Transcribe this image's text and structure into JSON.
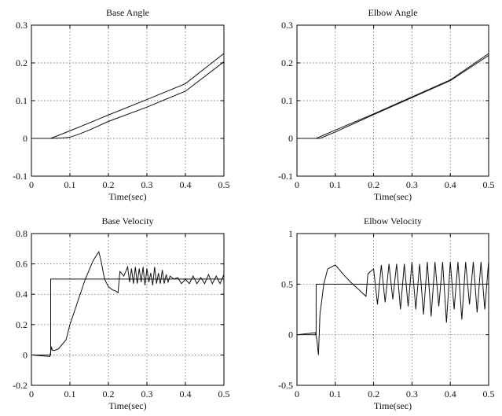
{
  "chart_data": [
    {
      "type": "line",
      "title": "Base Angle",
      "xlabel": "Time(sec)",
      "ylabel": "",
      "xlim": [
        0,
        0.5
      ],
      "ylim": [
        -0.1,
        0.3
      ],
      "xticks": [
        "0",
        "0.1",
        "0.2",
        "0.3",
        "0.4",
        "0.5"
      ],
      "yticks": [
        "-0.1",
        "0",
        "0.1",
        "0.2",
        "0.3"
      ],
      "grid": true,
      "series": [
        {
          "x": [
            0,
            0.05,
            0.1,
            0.2,
            0.3,
            0.4,
            0.5
          ],
          "y": [
            0,
            0,
            0.02,
            0.062,
            0.103,
            0.145,
            0.225
          ]
        },
        {
          "x": [
            0,
            0.05,
            0.08,
            0.1,
            0.12,
            0.15,
            0.2,
            0.3,
            0.4,
            0.5
          ],
          "y": [
            0,
            0,
            0.001,
            0.003,
            0.01,
            0.022,
            0.045,
            0.083,
            0.125,
            0.203
          ]
        }
      ]
    },
    {
      "type": "line",
      "title": "Elbow Angle",
      "xlabel": "Time(sec)",
      "ylabel": "",
      "xlim": [
        0,
        0.5
      ],
      "ylim": [
        -0.1,
        0.3
      ],
      "xticks": [
        "0",
        "0.1",
        "0.2",
        "0.3",
        "0.4",
        "0.5"
      ],
      "yticks": [
        "-0.1",
        "0",
        "0.1",
        "0.2",
        "0.3"
      ],
      "grid": true,
      "series": [
        {
          "x": [
            0,
            0.05,
            0.1,
            0.2,
            0.3,
            0.4,
            0.5
          ],
          "y": [
            0,
            0,
            0.022,
            0.065,
            0.11,
            0.155,
            0.225
          ]
        },
        {
          "x": [
            0,
            0.06,
            0.1,
            0.2,
            0.3,
            0.4,
            0.5
          ],
          "y": [
            0,
            0,
            0.017,
            0.063,
            0.108,
            0.153,
            0.22
          ]
        }
      ]
    },
    {
      "type": "line",
      "title": "Base Velocity",
      "xlabel": "Time(sec)",
      "ylabel": "",
      "xlim": [
        0,
        0.5
      ],
      "ylim": [
        -0.2,
        0.8
      ],
      "xticks": [
        "0",
        "0.1",
        "0.2",
        "0.3",
        "0.4",
        "0.5"
      ],
      "yticks": [
        "-0.2",
        "0",
        "0.2",
        "0.4",
        "0.6",
        "0.8"
      ],
      "grid": true,
      "series": [
        {
          "x": [
            0,
            0.05,
            0.05,
            0.5
          ],
          "y": [
            0,
            0,
            0.5,
            0.5
          ]
        },
        {
          "x": [
            0,
            0.048,
            0.052,
            0.055,
            0.06,
            0.07,
            0.09,
            0.1,
            0.12,
            0.14,
            0.16,
            0.175,
            0.18,
            0.19,
            0.2,
            0.21,
            0.22,
            0.225,
            0.23,
            0.24,
            0.25,
            0.255,
            0.26,
            0.265,
            0.27,
            0.275,
            0.28,
            0.285,
            0.29,
            0.295,
            0.3,
            0.305,
            0.31,
            0.315,
            0.32,
            0.325,
            0.33,
            0.335,
            0.34,
            0.345,
            0.35,
            0.355,
            0.36,
            0.37,
            0.38,
            0.39,
            0.4,
            0.41,
            0.42,
            0.43,
            0.44,
            0.45,
            0.46,
            0.47,
            0.48,
            0.49,
            0.5
          ],
          "y": [
            0,
            -0.01,
            0.05,
            0.03,
            0.03,
            0.04,
            0.1,
            0.2,
            0.35,
            0.5,
            0.62,
            0.68,
            0.63,
            0.5,
            0.45,
            0.43,
            0.42,
            0.41,
            0.55,
            0.52,
            0.58,
            0.48,
            0.57,
            0.47,
            0.58,
            0.47,
            0.57,
            0.48,
            0.58,
            0.46,
            0.57,
            0.48,
            0.54,
            0.46,
            0.58,
            0.47,
            0.54,
            0.47,
            0.56,
            0.47,
            0.53,
            0.48,
            0.52,
            0.5,
            0.51,
            0.47,
            0.5,
            0.47,
            0.52,
            0.47,
            0.51,
            0.47,
            0.53,
            0.47,
            0.52,
            0.47,
            0.53
          ]
        }
      ]
    },
    {
      "type": "line",
      "title": "Elbow Velocity",
      "xlabel": "Time(sec)",
      "ylabel": "",
      "xlim": [
        0,
        0.5
      ],
      "ylim": [
        -0.5,
        1
      ],
      "xticks": [
        "0",
        "0.1",
        "0.2",
        "0.3",
        "0.4",
        "0.5"
      ],
      "yticks": [
        "-0.5",
        "0",
        "0.5",
        "1"
      ],
      "grid": true,
      "series": [
        {
          "x": [
            0,
            0.05,
            0.05,
            0.5
          ],
          "y": [
            0,
            0,
            0.5,
            0.5
          ]
        },
        {
          "x": [
            0,
            0.048,
            0.052,
            0.056,
            0.06,
            0.07,
            0.08,
            0.1,
            0.12,
            0.14,
            0.16,
            0.18,
            0.185,
            0.19,
            0.2,
            0.21,
            0.22,
            0.23,
            0.24,
            0.25,
            0.26,
            0.27,
            0.28,
            0.29,
            0.3,
            0.31,
            0.32,
            0.33,
            0.34,
            0.35,
            0.36,
            0.37,
            0.38,
            0.39,
            0.4,
            0.41,
            0.42,
            0.43,
            0.44,
            0.45,
            0.46,
            0.47,
            0.48,
            0.49,
            0.5
          ],
          "y": [
            0,
            0.02,
            -0.05,
            -0.2,
            0.2,
            0.5,
            0.65,
            0.69,
            0.6,
            0.52,
            0.45,
            0.38,
            0.6,
            0.62,
            0.65,
            0.3,
            0.69,
            0.32,
            0.7,
            0.35,
            0.7,
            0.25,
            0.7,
            0.28,
            0.72,
            0.25,
            0.7,
            0.2,
            0.72,
            0.18,
            0.72,
            0.28,
            0.72,
            0.12,
            0.72,
            0.25,
            0.72,
            0.15,
            0.72,
            0.3,
            0.72,
            0.22,
            0.72,
            0.25,
            0.73
          ]
        }
      ]
    }
  ]
}
